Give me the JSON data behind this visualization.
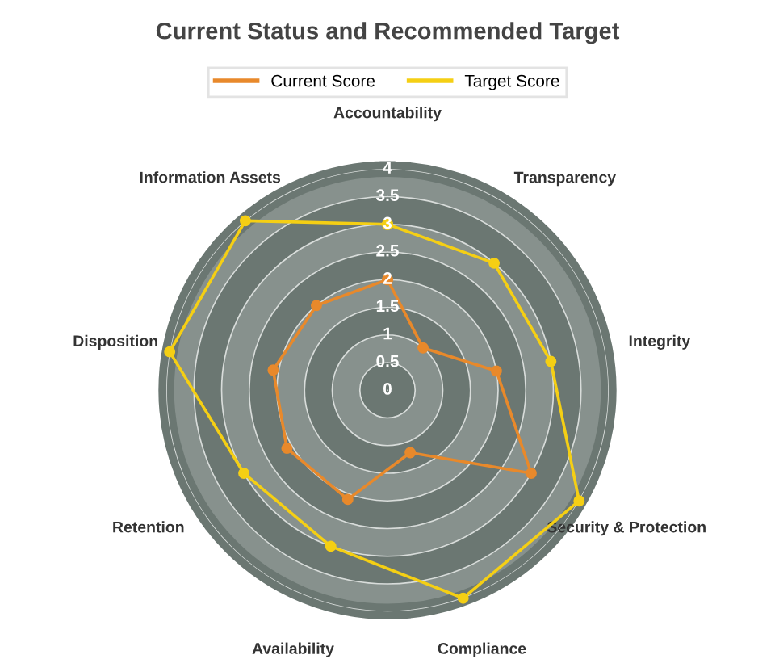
{
  "chart_data": {
    "type": "radar",
    "title": "Current Status and Recommended Target",
    "categories": [
      "Accountability",
      "Transparency",
      "Integrity",
      "Security & Protection",
      "Compliance",
      "Availability",
      "Retention",
      "Disposition",
      "Information Assets"
    ],
    "series": [
      {
        "name": "Current Score",
        "color": "#e8892b",
        "values": [
          2,
          1,
          2,
          3,
          1.2,
          2.1,
          2.1,
          2.1,
          2
        ]
      },
      {
        "name": "Target Score",
        "color": "#f5cf14",
        "values": [
          3,
          3,
          3,
          4,
          4,
          3,
          3,
          4,
          4
        ]
      }
    ],
    "ylim": [
      0,
      4
    ],
    "yticks": [
      0,
      0.5,
      1,
      1.5,
      2,
      2.5,
      3,
      3.5,
      4
    ],
    "grid": "y",
    "legend": "top",
    "marker": "circle",
    "line_style": "solid"
  }
}
